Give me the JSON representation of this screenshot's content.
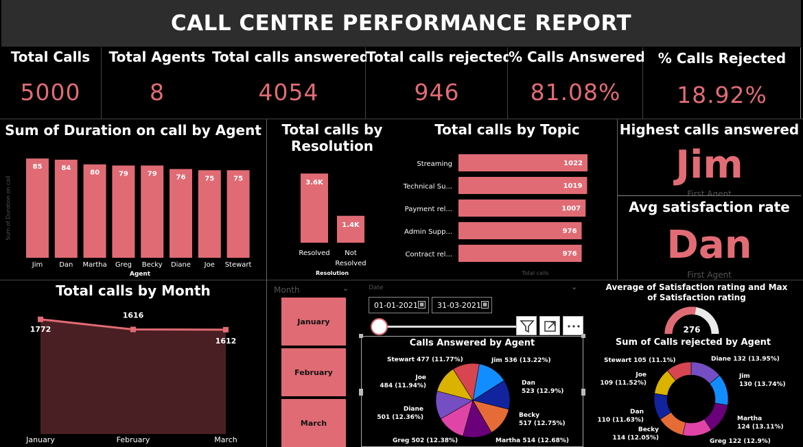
{
  "report": {
    "title": "CALL CENTRE PERFORMANCE REPORT"
  },
  "kpis": [
    {
      "label": "Total Calls",
      "value": "5000"
    },
    {
      "label": "Total Agents",
      "value": "8"
    },
    {
      "label": "Total calls answered",
      "value": "4054"
    },
    {
      "label": "Total calls rejected",
      "value": "946"
    },
    {
      "label": "% Calls Answered",
      "value": "81.08%"
    },
    {
      "label": "% Calls Rejected",
      "value": "18.92%"
    }
  ],
  "highlight": {
    "highest": {
      "title": "Highest calls answered",
      "value": "Jim",
      "sub": "First Agent"
    },
    "satisfaction": {
      "title": "Avg satisfaction rate",
      "value": "Dan",
      "sub": "First Agent"
    }
  },
  "slicers": {
    "month": {
      "label": "Month",
      "options": [
        "January",
        "February",
        "March"
      ]
    },
    "date": {
      "label": "Date",
      "start": "01-01-2021",
      "end": "31-03-2021"
    }
  },
  "colors": {
    "accent": "#e06b74",
    "area": "#4a1f23",
    "bg": "#000000"
  },
  "chart_data": [
    {
      "type": "bar",
      "title": "Sum of Duration on call by Agent",
      "xlabel": "Agent",
      "ylabel": "Sum of Duration on call",
      "categories": [
        "Jim",
        "Dan",
        "Martha",
        "Greg",
        "Becky",
        "Diane",
        "Joe",
        "Stewart"
      ],
      "values": [
        85,
        84,
        80,
        79,
        79,
        76,
        75,
        75
      ],
      "ylim": [
        0,
        90
      ]
    },
    {
      "type": "bar",
      "title": "Total calls by Resolution",
      "xlabel": "Resolution",
      "categories": [
        "Resolved",
        "Not Resolved"
      ],
      "values": [
        3600,
        1400
      ],
      "labels": [
        "3.6K",
        "1.4K"
      ],
      "ylim": [
        0,
        4200
      ]
    },
    {
      "type": "bar",
      "orientation": "horizontal",
      "title": "Total calls by Topic",
      "xlabel": "Total calls",
      "categories": [
        "Streaming",
        "Technical Su...",
        "Payment rel...",
        "Admin Supp...",
        "Contract rel..."
      ],
      "values": [
        1022,
        1019,
        1007,
        976,
        976
      ],
      "xlim": [
        0,
        1100
      ]
    },
    {
      "type": "area",
      "title": "Total calls by Month",
      "categories": [
        "January",
        "February",
        "March"
      ],
      "values": [
        1772,
        1616,
        1612
      ],
      "ylim": [
        0,
        1950
      ]
    },
    {
      "type": "gauge",
      "title": "Average of Satisfaction rating and Max of Satisfaction rating",
      "value": 276,
      "max": 500
    },
    {
      "type": "pie",
      "title": "Calls Answered by Agent",
      "slices": [
        {
          "name": "Jim",
          "value": 536,
          "label": "Jim 536 (13.22%)",
          "color": "#118dff"
        },
        {
          "name": "Dan",
          "value": 523,
          "label": "Dan 523 (12.9%)",
          "color": "#12239e"
        },
        {
          "name": "Becky",
          "value": 517,
          "label": "Becky 517 (12.75%)",
          "color": "#e66c37"
        },
        {
          "name": "Martha",
          "value": 514,
          "label": "Martha 514 (12.68%)",
          "color": "#6b007b"
        },
        {
          "name": "Greg",
          "value": 502,
          "label": "Greg 502 (12.38%)",
          "color": "#e044a7"
        },
        {
          "name": "Diane",
          "value": 501,
          "label": "Diane 501 (12.36%)",
          "color": "#744ec2"
        },
        {
          "name": "Joe",
          "value": 484,
          "label": "Joe 484 (11.94%)",
          "color": "#d9b300"
        },
        {
          "name": "Stewart",
          "value": 477,
          "label": "Stewart 477 (11.77%)",
          "color": "#d64550"
        }
      ]
    },
    {
      "type": "pie",
      "donut": true,
      "title": "Sum of Calls rejected by Agent",
      "slices": [
        {
          "name": "Diane",
          "value": 132,
          "label": "Diane 132 (13.95%)",
          "color": "#744ec2"
        },
        {
          "name": "Jim",
          "value": 130,
          "label": "Jim 130 (13.74%)",
          "color": "#118dff"
        },
        {
          "name": "Martha",
          "value": 124,
          "label": "Martha 124 (13.11%)",
          "color": "#6b007b"
        },
        {
          "name": "Greg",
          "value": 122,
          "label": "Greg 122 (12.9%)",
          "color": "#e044a7"
        },
        {
          "name": "Becky",
          "value": 114,
          "label": "Becky 114 (12.05%)",
          "color": "#e66c37"
        },
        {
          "name": "Dan",
          "value": 110,
          "label": "Dan 110 (11.63%)",
          "color": "#12239e"
        },
        {
          "name": "Joe",
          "value": 109,
          "label": "Joe 109 (11.52%)",
          "color": "#d9b300"
        },
        {
          "name": "Stewart",
          "value": 105,
          "label": "Stewart 105 (11.1%)",
          "color": "#d64550"
        }
      ]
    }
  ]
}
